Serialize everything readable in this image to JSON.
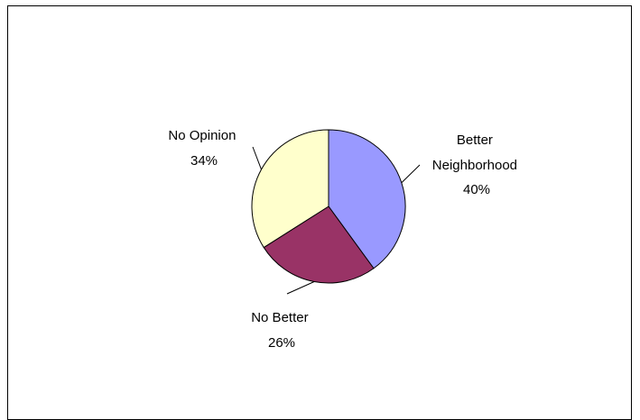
{
  "chart_data": {
    "type": "pie",
    "title": "",
    "slices": [
      {
        "label": "Better Neighborhood",
        "label_lines": [
          "Better",
          "Neighborhood"
        ],
        "percent_label": "40%",
        "value": 40,
        "color": "#9999FF"
      },
      {
        "label": "No Better",
        "label_lines": [
          "No Better"
        ],
        "percent_label": "26%",
        "value": 26,
        "color": "#993366"
      },
      {
        "label": "No Opinion",
        "label_lines": [
          "No Opinion"
        ],
        "percent_label": "34%",
        "value": 34,
        "color": "#FFFFCC"
      }
    ],
    "start_angle": "12 o'clock",
    "direction": "clockwise",
    "legend": "none",
    "data_labels": "outside with leader lines"
  }
}
